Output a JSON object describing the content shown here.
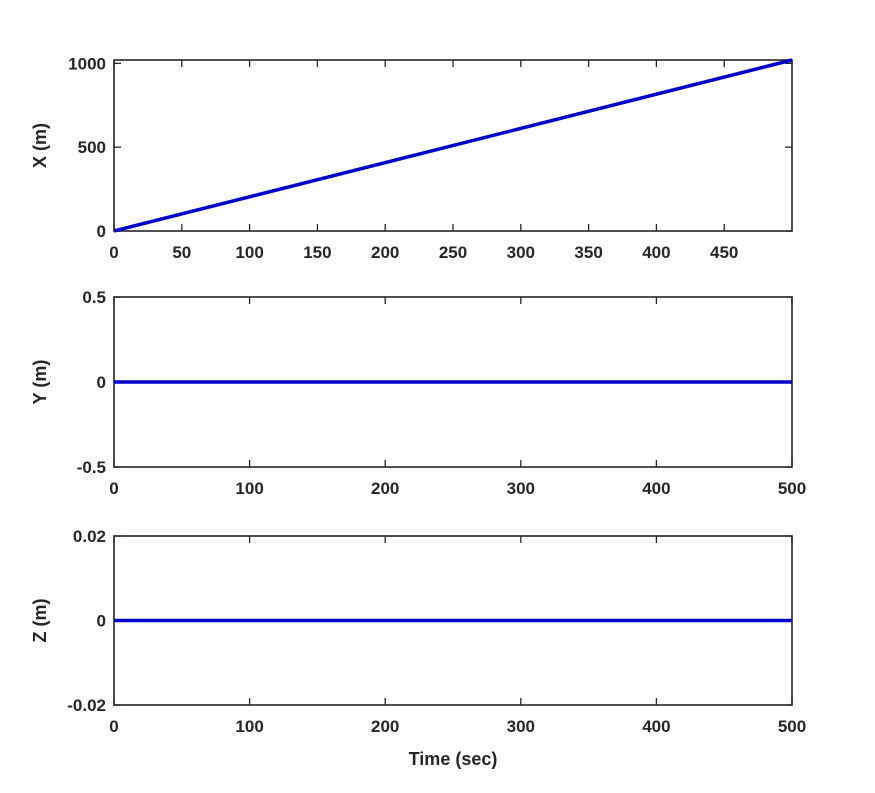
{
  "chart_data": [
    {
      "type": "line",
      "xlabel": "",
      "ylabel": "X (m)",
      "xlim": [
        0,
        500
      ],
      "ylim": [
        0,
        1020
      ],
      "x_ticks": [
        0,
        50,
        100,
        150,
        200,
        250,
        300,
        350,
        400,
        450
      ],
      "x_tick_labels": [
        "0",
        "50",
        "100",
        "150",
        "200",
        "250",
        "300",
        "350",
        "400",
        "450"
      ],
      "y_ticks": [
        0,
        500,
        1000
      ],
      "y_tick_labels": [
        "0",
        "500",
        "1000"
      ],
      "grid": false,
      "series": [
        {
          "x": [
            0,
            500
          ],
          "y": [
            0,
            1020
          ],
          "color": "#0000cc"
        }
      ]
    },
    {
      "type": "line",
      "xlabel": "",
      "ylabel": "Y (m)",
      "xlim": [
        0,
        500
      ],
      "ylim": [
        -0.5,
        0.5
      ],
      "x_ticks": [
        0,
        100,
        200,
        300,
        400,
        500
      ],
      "x_tick_labels": [
        "0",
        "100",
        "200",
        "300",
        "400",
        "500"
      ],
      "y_ticks": [
        -0.5,
        0,
        0.5
      ],
      "y_tick_labels": [
        "-0.5",
        "0",
        "0.5"
      ],
      "grid": false,
      "series": [
        {
          "x": [
            0,
            500
          ],
          "y": [
            0,
            0
          ],
          "color": "#0000cc"
        }
      ]
    },
    {
      "type": "line",
      "xlabel": "Time (sec)",
      "ylabel": "Z (m)",
      "xlim": [
        0,
        500
      ],
      "ylim": [
        -0.02,
        0.02
      ],
      "x_ticks": [
        0,
        100,
        200,
        300,
        400,
        500
      ],
      "x_tick_labels": [
        "0",
        "100",
        "200",
        "300",
        "400",
        "500"
      ],
      "y_ticks": [
        -0.02,
        0,
        0.02
      ],
      "y_tick_labels": [
        "-0.02",
        "0",
        "0.02"
      ],
      "grid": false,
      "series": [
        {
          "x": [
            0,
            500
          ],
          "y": [
            0,
            0
          ],
          "color": "#0000cc"
        }
      ]
    }
  ]
}
